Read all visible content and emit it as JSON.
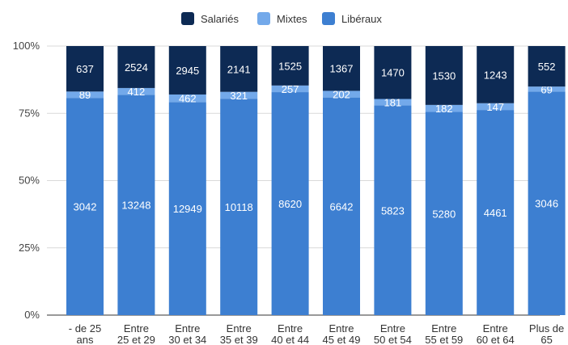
{
  "chart_data": {
    "type": "bar",
    "stacked": true,
    "normalized": true,
    "categories": [
      [
        "- de 25",
        "ans"
      ],
      [
        "Entre",
        "25 et 29"
      ],
      [
        "Entre",
        "30 et 34"
      ],
      [
        "Entre",
        "35 et 39"
      ],
      [
        "Entre",
        "40 et 44"
      ],
      [
        "Entre",
        "45 et 49"
      ],
      [
        "Entre",
        "50 et 54"
      ],
      [
        "Entre",
        "55 et 59"
      ],
      [
        "Entre",
        "60 et 64"
      ],
      [
        "Plus de",
        "65"
      ]
    ],
    "series": [
      {
        "name": "Libéraux",
        "color": "#3d7fd1",
        "label_color": "#ffffff",
        "values": [
          3042,
          13248,
          12949,
          10118,
          8620,
          6642,
          5823,
          5280,
          4461,
          3046
        ]
      },
      {
        "name": "Mixtes",
        "color": "#73a9ea",
        "label_color": "#ffffff",
        "values": [
          89,
          412,
          462,
          321,
          257,
          202,
          181,
          182,
          147,
          69
        ]
      },
      {
        "name": "Salariés",
        "color": "#0d2a54",
        "label_color": "#ffffff",
        "values": [
          637,
          2524,
          2945,
          2141,
          1525,
          1367,
          1470,
          1530,
          1243,
          552
        ]
      }
    ],
    "legend_order": [
      "Salariés",
      "Mixtes",
      "Libéraux"
    ],
    "legend_position": "top",
    "yticks": [
      "0%",
      "25%",
      "50%",
      "75%",
      "100%"
    ],
    "ylim": [
      0,
      100
    ]
  }
}
